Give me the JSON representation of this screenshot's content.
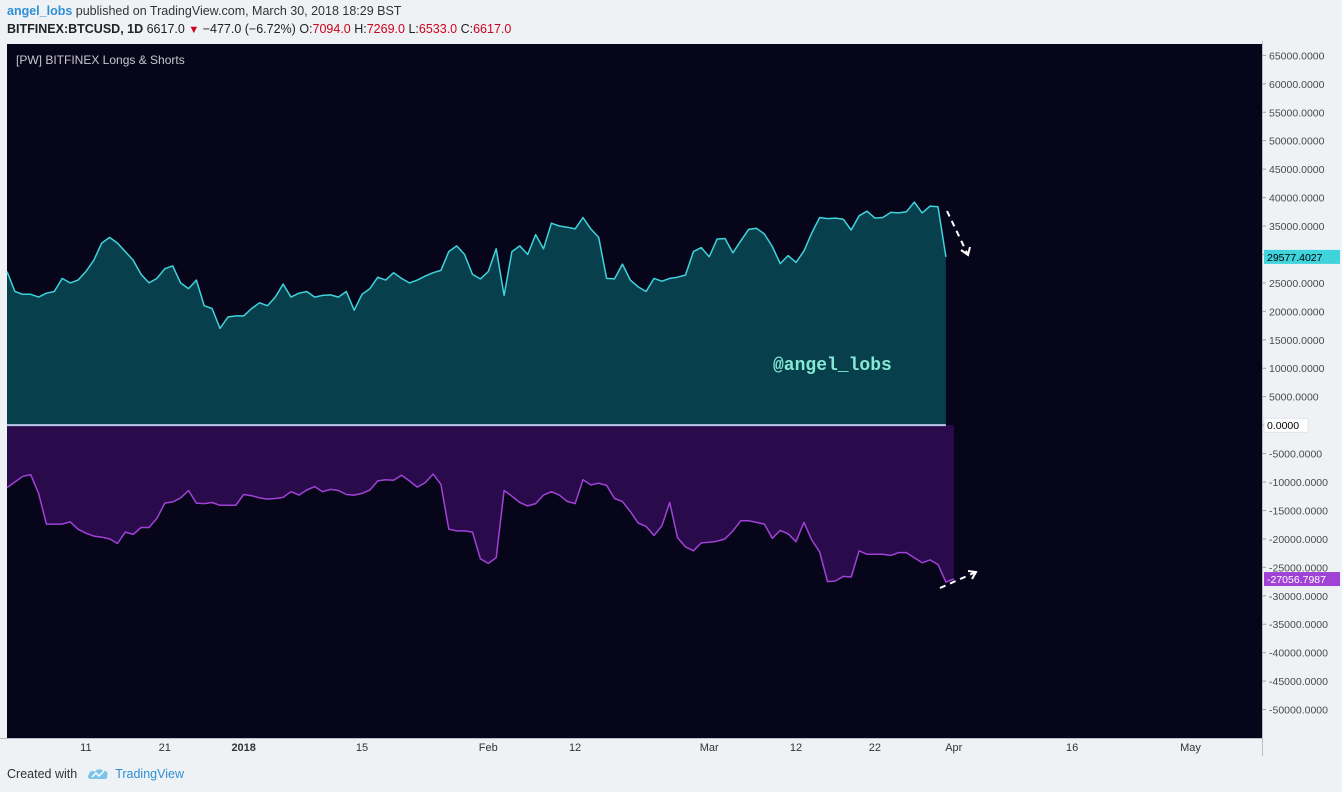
{
  "header": {
    "user": "angel_lobs",
    "published": "published on TradingView.com, March 30, 2018 18:29 BST",
    "symbol": "BITFINEX:BTCUSD, 1D",
    "price": "6617.0",
    "change": "−477.0 (−6.72%)",
    "o_label": "O:",
    "o": "7094.0",
    "h_label": "H:",
    "h": "7269.0",
    "l_label": "L:",
    "l": "6533.0",
    "c_label": "C:",
    "c": "6617.0",
    "down_arrow": "▼"
  },
  "indicator_label": "[PW] BITFINEX Longs & Shorts",
  "watermark": "@angel_lobs",
  "footer": {
    "created_with": "Created with",
    "brand": "TradingView"
  },
  "colors": {
    "background": "#07051a",
    "longs_line": "#3fd3dc",
    "longs_fill": "#083f4d",
    "shorts_line": "#a042d6",
    "shorts_fill": "#290a4a",
    "zero_line": "#b9c7ea",
    "axis_bg": "#eef2f5",
    "watermark": "#86e9d5"
  },
  "chart_data": {
    "type": "area",
    "ylim": [
      -55000,
      67000
    ],
    "y_ticks": [
      65000,
      60000,
      55000,
      50000,
      45000,
      40000,
      35000,
      30000,
      25000,
      20000,
      15000,
      10000,
      5000,
      0,
      -5000,
      -10000,
      -15000,
      -20000,
      -25000,
      -30000,
      -35000,
      -40000,
      -45000,
      -50000
    ],
    "y_tick_labels": [
      "65000.0000",
      "60000.0000",
      "55000.0000",
      "50000.0000",
      "45000.0000",
      "40000.0000",
      "35000.0000",
      "30000.0000",
      "25000.0000",
      "20000.0000",
      "15000.0000",
      "10000.0000",
      "5000.0000",
      "0.0000",
      "-5000.0000",
      "-10000.0000",
      "-15000.0000",
      "-20000.0000",
      "-25000.0000",
      "-30000.0000",
      "-35000.0000",
      "-40000.0000",
      "-45000.0000",
      "-50000.0000"
    ],
    "x_ticks": [
      {
        "label": "11",
        "day": 11,
        "bold": false
      },
      {
        "label": "21",
        "day": 21,
        "bold": false
      },
      {
        "label": "2018",
        "day": 31,
        "bold": true
      },
      {
        "label": "15",
        "day": 46,
        "bold": false
      },
      {
        "label": "Feb",
        "day": 62,
        "bold": false
      },
      {
        "label": "12",
        "day": 73,
        "bold": false
      },
      {
        "label": "Mar",
        "day": 90,
        "bold": false
      },
      {
        "label": "12",
        "day": 101,
        "bold": false
      },
      {
        "label": "22",
        "day": 111,
        "bold": false
      },
      {
        "label": "Apr",
        "day": 121,
        "bold": false
      },
      {
        "label": "16",
        "day": 136,
        "bold": false
      },
      {
        "label": "May",
        "day": 151,
        "bold": false
      }
    ],
    "x_start_day": 1,
    "x_end_day": 119,
    "series": [
      {
        "name": "Longs",
        "last_label": "29577.4027",
        "values": [
          27000,
          23500,
          23000,
          23000,
          22500,
          23200,
          23500,
          25800,
          25000,
          25500,
          27000,
          29000,
          32000,
          33000,
          32000,
          30500,
          29000,
          26500,
          25000,
          25800,
          27500,
          28000,
          25000,
          24000,
          25500,
          21000,
          20500,
          17000,
          19000,
          19200,
          19200,
          20500,
          21500,
          21000,
          22500,
          24800,
          22500,
          23200,
          23500,
          22500,
          22800,
          22900,
          22500,
          23500,
          20200,
          23000,
          24000,
          26000,
          25500,
          26800,
          25800,
          25000,
          25500,
          26200,
          26800,
          27200,
          30500,
          31500,
          30000,
          26500,
          25700,
          27000,
          31000,
          22800,
          30500,
          31500,
          30000,
          33500,
          31000,
          35500,
          35000,
          34800,
          34500,
          36500,
          34500,
          33000,
          25800,
          25700,
          28300,
          25500,
          24300,
          23500,
          25800,
          25300,
          25800,
          26000,
          26400,
          30500,
          31200,
          29600,
          32700,
          32800,
          30300,
          32400,
          34400,
          34600,
          33600,
          31400,
          28400,
          29800,
          28600,
          30600,
          33800,
          36500,
          36300,
          36400,
          36200,
          34300,
          36800,
          37600,
          36400,
          36500,
          37400,
          37300,
          37500,
          39200,
          37300,
          38500,
          38400,
          29577
        ]
      },
      {
        "name": "Shorts",
        "last_label": "-27056.7987",
        "values": [
          -11000,
          -10000,
          -9000,
          -8700,
          -12000,
          -17400,
          -17400,
          -17400,
          -17000,
          -18300,
          -19000,
          -19500,
          -19700,
          -20000,
          -20800,
          -18800,
          -19200,
          -18000,
          -18000,
          -16400,
          -13700,
          -13500,
          -12800,
          -11500,
          -13700,
          -13800,
          -13600,
          -14100,
          -14100,
          -14100,
          -12200,
          -12400,
          -12800,
          -13000,
          -12900,
          -12700,
          -11700,
          -12300,
          -11400,
          -10800,
          -11700,
          -11300,
          -11500,
          -12200,
          -12300,
          -12000,
          -11400,
          -9800,
          -9600,
          -9700,
          -8800,
          -9800,
          -10900,
          -10100,
          -8600,
          -10400,
          -18300,
          -18600,
          -18600,
          -18800,
          -23500,
          -24300,
          -23300,
          -11500,
          -12500,
          -13600,
          -14200,
          -13800,
          -12300,
          -11700,
          -12300,
          -13400,
          -13800,
          -9600,
          -10500,
          -10200,
          -10600,
          -12900,
          -13400,
          -15200,
          -17200,
          -17800,
          -19400,
          -17700,
          -13600,
          -19800,
          -21400,
          -22100,
          -20700,
          -20600,
          -20400,
          -20000,
          -18600,
          -16800,
          -16800,
          -17100,
          -17400,
          -19900,
          -18500,
          -19100,
          -20500,
          -17100,
          -20200,
          -22300,
          -27500,
          -27400,
          -26600,
          -26700,
          -22100,
          -22700,
          -22700,
          -22700,
          -22900,
          -22400,
          -22400,
          -23300,
          -24200,
          -23700,
          -24500,
          -27600,
          -27056
        ]
      }
    ]
  }
}
